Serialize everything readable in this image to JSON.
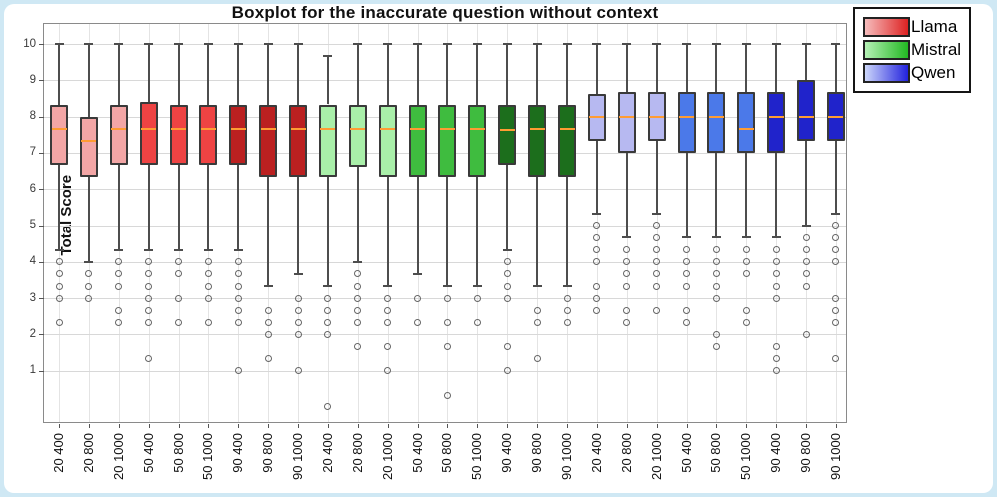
{
  "page": {
    "background": "#cfe8f4",
    "card_background": "#ffffff"
  },
  "chart_data": {
    "type": "boxplot",
    "title": "Boxplot for the inaccurate question without context",
    "ylabel": "Total Score",
    "yticks": [
      10,
      9,
      8,
      7,
      6,
      5,
      4,
      3,
      2,
      1
    ],
    "ylim": [
      -0.47,
      10.55
    ],
    "grid": true,
    "median_color": "#ff9c33",
    "legend": {
      "position": "top-right-outside",
      "entries": [
        {
          "label": "Llama",
          "gradient": [
            "#f6bcbc",
            "#dd2222"
          ]
        },
        {
          "label": "Mistral",
          "gradient": [
            "#b6f2b6",
            "#22b822"
          ]
        },
        {
          "label": "Qwen",
          "gradient": [
            "#ccd6fa",
            "#2222dd"
          ]
        }
      ]
    },
    "boxes": [
      {
        "group": "Llama",
        "label": "20 400",
        "color": "#f3a6a6",
        "lo": 4.33,
        "q1": 6.67,
        "med": 7.67,
        "q3": 8.33,
        "hi": 10,
        "outliers": [
          4.0,
          3.67,
          3.33,
          3.0,
          2.33
        ]
      },
      {
        "group": "Llama",
        "label": "20 800",
        "color": "#f3a6a6",
        "lo": 4.0,
        "q1": 6.33,
        "med": 7.33,
        "q3": 8.0,
        "hi": 10,
        "outliers": [
          3.67,
          3.33,
          3.0
        ]
      },
      {
        "group": "Llama",
        "label": "20 1000",
        "color": "#f3a6a6",
        "lo": 4.33,
        "q1": 6.67,
        "med": 7.67,
        "q3": 8.33,
        "hi": 10,
        "outliers": [
          4.0,
          3.67,
          3.33,
          2.67,
          2.33
        ]
      },
      {
        "group": "Llama",
        "label": "50 400",
        "color": "#ee4343",
        "lo": 4.33,
        "q1": 6.67,
        "med": 7.67,
        "q3": 8.4,
        "hi": 10,
        "outliers": [
          4.0,
          3.67,
          3.33,
          3.0,
          2.67,
          2.33,
          1.33
        ]
      },
      {
        "group": "Llama",
        "label": "50 800",
        "color": "#ee4343",
        "lo": 4.33,
        "q1": 6.67,
        "med": 7.67,
        "q3": 8.33,
        "hi": 10,
        "outliers": [
          4.0,
          3.67,
          3.0,
          2.33
        ]
      },
      {
        "group": "Llama",
        "label": "50 1000",
        "color": "#ee4343",
        "lo": 4.33,
        "q1": 6.67,
        "med": 7.67,
        "q3": 8.33,
        "hi": 10,
        "outliers": [
          4.0,
          3.67,
          3.33,
          3.0,
          2.33
        ]
      },
      {
        "group": "Llama",
        "label": "90 400",
        "color": "#bb2020",
        "lo": 4.33,
        "q1": 6.67,
        "med": 7.67,
        "q3": 8.33,
        "hi": 10,
        "outliers": [
          4.0,
          3.67,
          3.33,
          3.0,
          2.67,
          2.33,
          1.0
        ]
      },
      {
        "group": "Llama",
        "label": "90 800",
        "color": "#bb2020",
        "lo": 3.33,
        "q1": 6.33,
        "med": 7.67,
        "q3": 8.33,
        "hi": 10,
        "outliers": [
          2.67,
          2.33,
          2.0,
          1.33
        ]
      },
      {
        "group": "Llama",
        "label": "90 1000",
        "color": "#bb2020",
        "lo": 3.67,
        "q1": 6.33,
        "med": 7.67,
        "q3": 8.33,
        "hi": 10,
        "outliers": [
          3.0,
          2.67,
          2.33,
          2.0,
          1.0
        ]
      },
      {
        "group": "Mistral",
        "label": "20 400",
        "color": "#a9efa9",
        "lo": 3.33,
        "q1": 6.33,
        "med": 7.67,
        "q3": 8.33,
        "hi": 9.67,
        "outliers": [
          3.0,
          2.67,
          2.33,
          2.0,
          0.0
        ]
      },
      {
        "group": "Mistral",
        "label": "20 800",
        "color": "#a9efa9",
        "lo": 4.0,
        "q1": 6.6,
        "med": 7.67,
        "q3": 8.33,
        "hi": 10,
        "outliers": [
          3.67,
          3.33,
          3.0,
          2.67,
          2.33,
          1.67
        ]
      },
      {
        "group": "Mistral",
        "label": "20 1000",
        "color": "#a9efa9",
        "lo": 3.33,
        "q1": 6.33,
        "med": 7.67,
        "q3": 8.33,
        "hi": 10,
        "outliers": [
          3.0,
          2.67,
          2.33,
          1.67,
          1.0
        ]
      },
      {
        "group": "Mistral",
        "label": "50 400",
        "color": "#3fbc3f",
        "lo": 3.67,
        "q1": 6.33,
        "med": 7.67,
        "q3": 8.33,
        "hi": 10,
        "outliers": [
          3.0,
          2.33
        ]
      },
      {
        "group": "Mistral",
        "label": "50 800",
        "color": "#3fbc3f",
        "lo": 3.33,
        "q1": 6.33,
        "med": 7.67,
        "q3": 8.33,
        "hi": 10,
        "outliers": [
          3.0,
          2.33,
          1.67,
          0.33
        ]
      },
      {
        "group": "Mistral",
        "label": "50 1000",
        "color": "#3fbc3f",
        "lo": 3.33,
        "q1": 6.33,
        "med": 7.67,
        "q3": 8.33,
        "hi": 10,
        "outliers": [
          3.0,
          2.33
        ]
      },
      {
        "group": "Mistral",
        "label": "90 400",
        "color": "#1c6e1c",
        "lo": 4.33,
        "q1": 6.67,
        "med": 7.63,
        "q3": 8.33,
        "hi": 10,
        "outliers": [
          4.0,
          3.67,
          3.33,
          3.0,
          1.67,
          1.0
        ]
      },
      {
        "group": "Mistral",
        "label": "90 800",
        "color": "#1c6e1c",
        "lo": 3.33,
        "q1": 6.33,
        "med": 7.65,
        "q3": 8.33,
        "hi": 10,
        "outliers": [
          2.67,
          2.33,
          1.33
        ]
      },
      {
        "group": "Mistral",
        "label": "90 1000",
        "color": "#1c6e1c",
        "lo": 3.33,
        "q1": 6.33,
        "med": 7.67,
        "q3": 8.33,
        "hi": 10,
        "outliers": [
          3.0,
          2.67,
          2.33
        ]
      },
      {
        "group": "Qwen",
        "label": "20 400",
        "color": "#b7b9f1",
        "lo": 5.33,
        "q1": 7.33,
        "med": 8.0,
        "q3": 8.63,
        "hi": 10,
        "outliers": [
          5.0,
          4.67,
          4.33,
          4.0,
          3.33,
          3.0,
          2.67
        ]
      },
      {
        "group": "Qwen",
        "label": "20 800",
        "color": "#b7b9f1",
        "lo": 4.67,
        "q1": 7.0,
        "med": 8.0,
        "q3": 8.67,
        "hi": 10,
        "outliers": [
          4.33,
          4.0,
          3.67,
          3.33,
          2.67,
          2.33
        ]
      },
      {
        "group": "Qwen",
        "label": "20 1000",
        "color": "#b7b9f1",
        "lo": 5.33,
        "q1": 7.33,
        "med": 8.0,
        "q3": 8.67,
        "hi": 10,
        "outliers": [
          5.0,
          4.67,
          4.33,
          4.0,
          3.67,
          3.33,
          2.67
        ]
      },
      {
        "group": "Qwen",
        "label": "50 400",
        "color": "#4b79e9",
        "lo": 4.67,
        "q1": 7.0,
        "med": 8.0,
        "q3": 8.67,
        "hi": 10,
        "outliers": [
          4.33,
          4.0,
          3.67,
          3.33,
          2.67,
          2.33
        ]
      },
      {
        "group": "Qwen",
        "label": "50 800",
        "color": "#4b79e9",
        "lo": 4.67,
        "q1": 7.0,
        "med": 8.0,
        "q3": 8.67,
        "hi": 10,
        "outliers": [
          4.33,
          4.0,
          3.67,
          3.33,
          3.0,
          2.0,
          1.67
        ]
      },
      {
        "group": "Qwen",
        "label": "50 1000",
        "color": "#4b79e9",
        "lo": 4.67,
        "q1": 7.0,
        "med": 7.67,
        "q3": 8.67,
        "hi": 10,
        "outliers": [
          4.33,
          4.0,
          3.67,
          2.67,
          2.33
        ]
      },
      {
        "group": "Qwen",
        "label": "90 400",
        "color": "#2023cb",
        "lo": 4.67,
        "q1": 7.0,
        "med": 8.0,
        "q3": 8.67,
        "hi": 10,
        "outliers": [
          4.33,
          4.0,
          3.67,
          3.33,
          3.0,
          1.67,
          1.33,
          1.0
        ]
      },
      {
        "group": "Qwen",
        "label": "90 800",
        "color": "#2023cb",
        "lo": 5.0,
        "q1": 7.33,
        "med": 8.0,
        "q3": 9.0,
        "hi": 10,
        "outliers": [
          4.67,
          4.33,
          4.0,
          3.67,
          3.33,
          2.0
        ]
      },
      {
        "group": "Qwen",
        "label": "90 1000",
        "color": "#2023cb",
        "lo": 5.33,
        "q1": 7.33,
        "med": 8.0,
        "q3": 8.67,
        "hi": 10,
        "outliers": [
          5.0,
          4.67,
          4.33,
          4.0,
          3.0,
          2.67,
          2.33,
          1.33
        ]
      }
    ]
  }
}
